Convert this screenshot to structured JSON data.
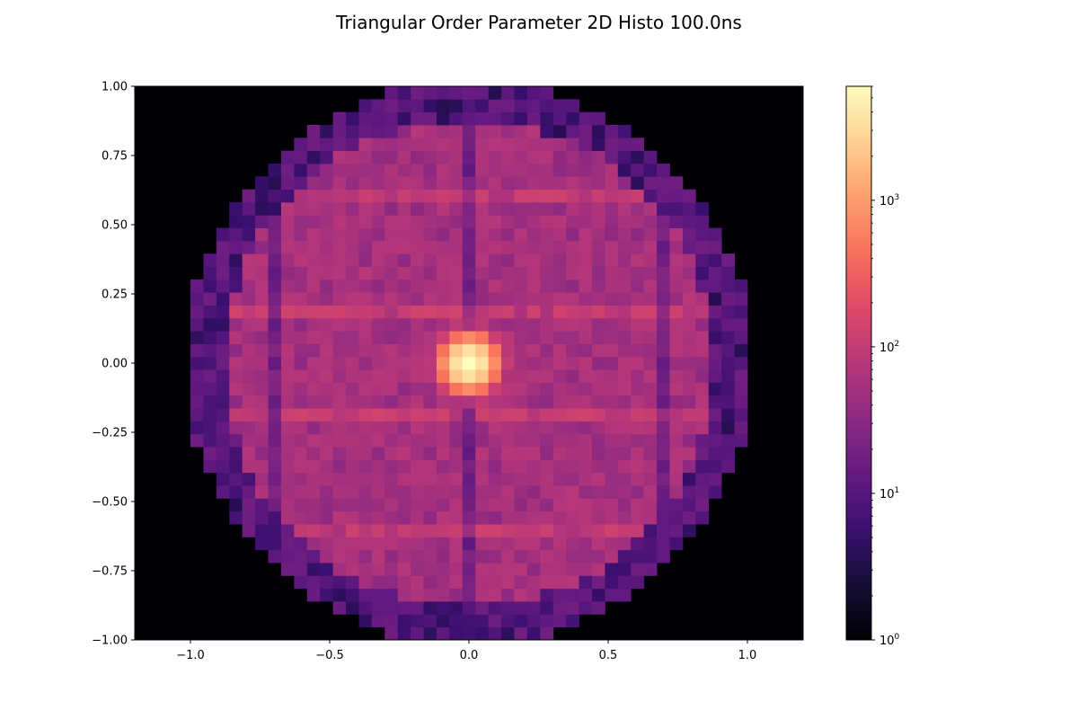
{
  "chart_data": {
    "type": "heatmap",
    "title": "Triangular Order Parameter 2D Histo 100.0ns",
    "xlabel": "",
    "ylabel": "",
    "xlim": [
      -1.2,
      1.2
    ],
    "ylim": [
      -1.0,
      1.0
    ],
    "x_ticks": [
      -1.0,
      -0.5,
      0.0,
      0.5,
      1.0
    ],
    "x_tick_labels": [
      "−1.0",
      "−0.5",
      "0.0",
      "0.5",
      "1.0"
    ],
    "y_ticks": [
      1.0,
      0.75,
      0.5,
      0.25,
      0.0,
      -0.25,
      -0.5,
      -0.75,
      -1.0
    ],
    "y_tick_labels": [
      "1.00",
      "0.75",
      "0.50",
      "0.25",
      "0.00",
      "−0.25",
      "−0.50",
      "−0.75",
      "−1.00"
    ],
    "bins": 43,
    "bin_range": [
      -1.0,
      1.0
    ],
    "disk_radius": 1.0,
    "colormap": "magma",
    "color_scale": "log",
    "color_range": [
      1,
      6000
    ],
    "colorbar": {
      "ticks": [
        1,
        10,
        100,
        1000
      ],
      "tick_labels": [
        "10",
        "10",
        "10",
        "10"
      ],
      "tick_exponents": [
        "0",
        "1",
        "2",
        "3"
      ],
      "placement": "right"
    },
    "peak": {
      "x": 0.0,
      "y": 0.0,
      "count": 6000
    },
    "background_count": 55,
    "edge_count": 12,
    "bright_rows_y": [
      0.6,
      0.18,
      -0.18,
      -0.6
    ],
    "dim_columns_x": [
      -0.7,
      0.0,
      0.7
    ],
    "background_color": "#000004",
    "colormap_stops": [
      "#000004",
      "#140e36",
      "#3b0f70",
      "#641a80",
      "#8c2981",
      "#b73779",
      "#de4968",
      "#f7705c",
      "#fe9f6d",
      "#fecf92",
      "#fcfdbf"
    ]
  }
}
